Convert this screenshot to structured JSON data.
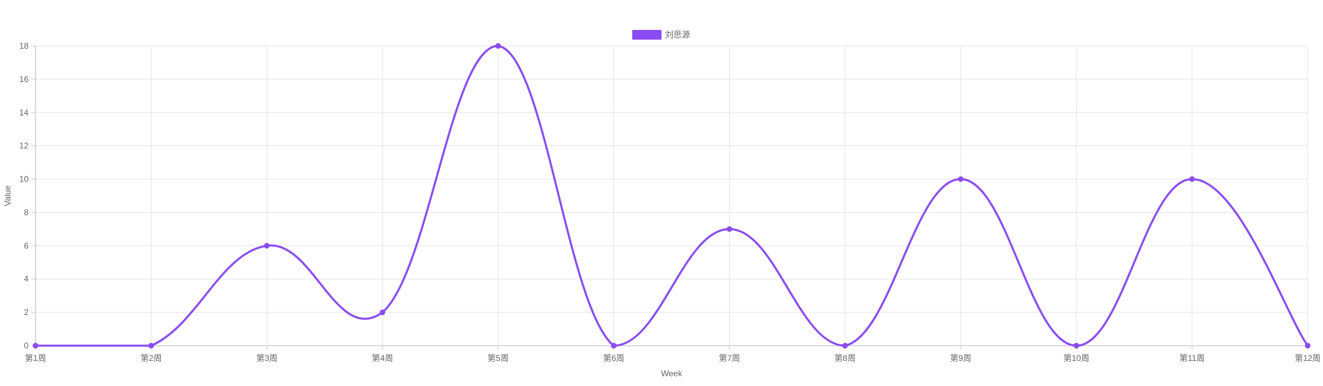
{
  "chart_data": {
    "type": "line",
    "title": "",
    "xlabel": "Week",
    "ylabel": "Value",
    "categories": [
      "第1周",
      "第2周",
      "第3周",
      "第4周",
      "第5周",
      "第6周",
      "第7周",
      "第8周",
      "第9周",
      "第10周",
      "第11周",
      "第12周"
    ],
    "series": [
      {
        "name": "刘思源",
        "color": "#8a4cf0",
        "values": [
          0,
          0,
          6,
          2,
          18,
          0,
          7,
          0,
          10,
          0,
          10,
          0
        ]
      }
    ],
    "ylim": [
      0,
      18
    ],
    "yticks": [
      0,
      2,
      4,
      6,
      8,
      10,
      12,
      14,
      16,
      18
    ],
    "grid": true,
    "legend_position": "top-center",
    "smooth": true
  }
}
